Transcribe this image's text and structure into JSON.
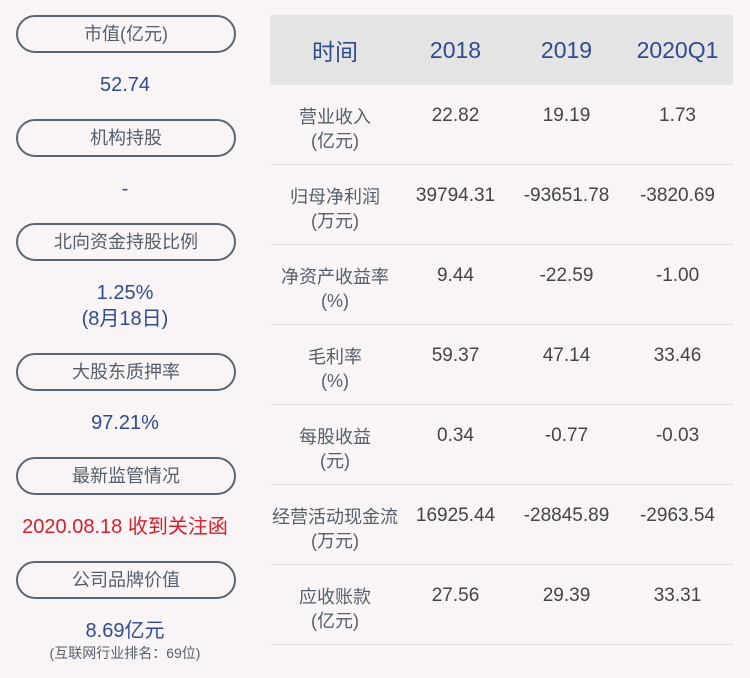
{
  "summary": {
    "market_cap": {
      "label": "市值(亿元)",
      "value": "52.74"
    },
    "institutional": {
      "label": "机构持股",
      "value": "-"
    },
    "northbound": {
      "label": "北向资金持股比例",
      "value": "1.25%",
      "note": "(8月18日)"
    },
    "pledge": {
      "label": "大股东质押率",
      "value": "97.21%"
    },
    "regulatory": {
      "label": "最新监管情况",
      "value": "2020.08.18 收到关注函"
    },
    "brand": {
      "label": "公司品牌价值",
      "value": "8.69亿元",
      "note": "(互联网行业排名：69位)"
    }
  },
  "table": {
    "headers": [
      "时间",
      "2018",
      "2019",
      "2020Q1"
    ],
    "rows": [
      {
        "name": "营业收入",
        "unit": "(亿元)",
        "values": [
          "22.82",
          "19.19",
          "1.73"
        ]
      },
      {
        "name": "归母净利润",
        "unit": "(万元)",
        "values": [
          "39794.31",
          "-93651.78",
          "-3820.69"
        ]
      },
      {
        "name": "净资产收益率",
        "unit": "(%)",
        "values": [
          "9.44",
          "-22.59",
          "-1.00"
        ]
      },
      {
        "name": "毛利率",
        "unit": "(%)",
        "values": [
          "59.37",
          "47.14",
          "33.46"
        ]
      },
      {
        "name": "每股收益",
        "unit": "(元)",
        "values": [
          "0.34",
          "-0.77",
          "-0.03"
        ]
      },
      {
        "name": "经营活动现金流",
        "unit": "(万元)",
        "values": [
          "16925.44",
          "-28845.89",
          "-2963.54"
        ]
      },
      {
        "name": "应收账款",
        "unit": "(亿元)",
        "values": [
          "27.56",
          "29.39",
          "33.31"
        ]
      }
    ]
  },
  "colors": {
    "accent_blue": "#2f4b8f",
    "alert_red": "#d8202c",
    "header_bg": "#e4e4e4",
    "page_bg": "#f9f5f6"
  }
}
